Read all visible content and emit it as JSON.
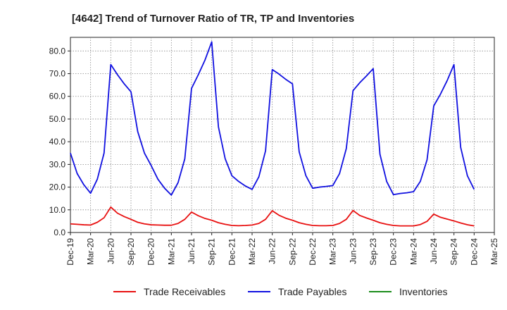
{
  "chart_data": {
    "type": "line",
    "title": "[4642]  Trend of Turnover Ratio of TR, TP and Inventories",
    "xlabel": "",
    "ylabel": "",
    "ylim": [
      0,
      86
    ],
    "y_ticks": [
      "0.0",
      "10.0",
      "20.0",
      "30.0",
      "40.0",
      "50.0",
      "60.0",
      "70.0",
      "80.0"
    ],
    "x_tick_labels": [
      "Dec-19",
      "Mar-20",
      "Jun-20",
      "Sep-20",
      "Dec-20",
      "Mar-21",
      "Jun-21",
      "Sep-21",
      "Dec-21",
      "Mar-22",
      "Jun-22",
      "Sep-22",
      "Dec-22",
      "Mar-23",
      "Jun-23",
      "Sep-23",
      "Dec-23",
      "Mar-24",
      "Jun-24",
      "Sep-24",
      "Dec-24",
      "Mar-25"
    ],
    "x_start": "Dec-19",
    "x_interval": "1 month",
    "grid": true,
    "legend_position": "bottom",
    "series": [
      {
        "name": "Trade Receivables",
        "color": "#e81010",
        "values": [
          3.8,
          3.6,
          3.4,
          3.3,
          4.5,
          6.5,
          11.2,
          8.5,
          7.0,
          5.8,
          4.5,
          3.8,
          3.4,
          3.3,
          3.2,
          3.2,
          4.0,
          5.8,
          9.0,
          7.4,
          6.2,
          5.4,
          4.3,
          3.6,
          3.1,
          3.0,
          3.1,
          3.3,
          4.0,
          5.8,
          9.6,
          7.6,
          6.3,
          5.4,
          4.3,
          3.6,
          3.1,
          3.0,
          3.0,
          3.1,
          4.0,
          5.8,
          9.7,
          7.5,
          6.4,
          5.4,
          4.3,
          3.6,
          3.1,
          2.9,
          2.9,
          2.9,
          3.5,
          4.9,
          8.1,
          6.7,
          5.9,
          5.1,
          4.2,
          3.4,
          2.9
        ]
      },
      {
        "name": "Trade Payables",
        "color": "#1010e0",
        "values": [
          35.0,
          26.0,
          21.0,
          17.3,
          23.5,
          35.0,
          74.0,
          69.5,
          65.5,
          62.0,
          44.5,
          35.0,
          29.5,
          23.5,
          19.5,
          16.5,
          22.0,
          32.5,
          63.5,
          69.5,
          76.0,
          84.0,
          46.5,
          32.5,
          25.0,
          22.5,
          20.5,
          19.0,
          24.5,
          36.0,
          71.8,
          69.8,
          67.5,
          65.5,
          35.5,
          25.0,
          19.5,
          20.0,
          20.3,
          20.7,
          26.0,
          37.0,
          62.5,
          66.0,
          69.0,
          72.2,
          34.5,
          22.5,
          16.7,
          17.2,
          17.5,
          18.0,
          22.5,
          32.0,
          55.8,
          61.0,
          67.0,
          74.0,
          37.5,
          25.0,
          19.0
        ]
      },
      {
        "name": "Inventories",
        "color": "#1a8c1a",
        "values": []
      }
    ]
  }
}
